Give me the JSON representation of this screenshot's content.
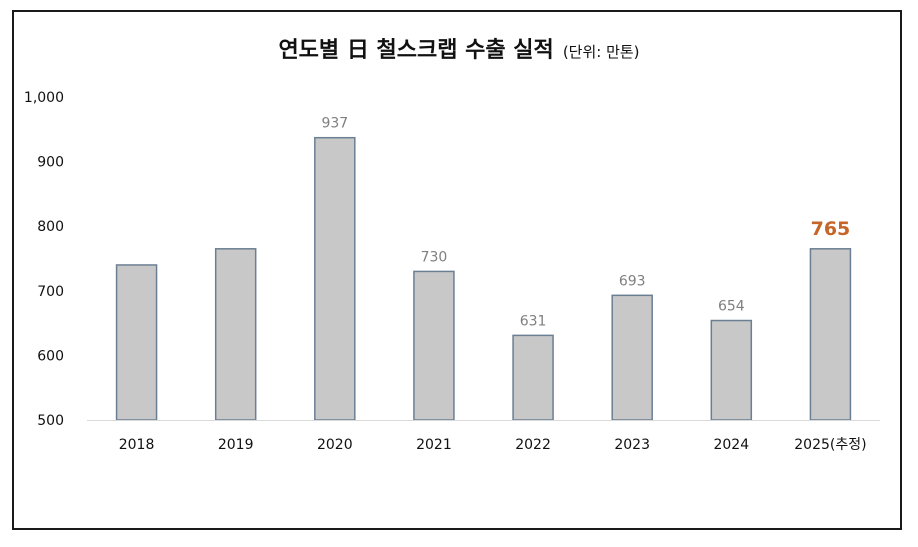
{
  "chart_data": {
    "type": "bar",
    "title": "연도별 日 철스크랩 수출 실적",
    "unit_note": "(단위: 만톤)",
    "categories": [
      "2018",
      "2019",
      "2020",
      "2021",
      "2022",
      "2023",
      "2024",
      "2025(추정)"
    ],
    "values": [
      740,
      765,
      937,
      730,
      631,
      693,
      654,
      765
    ],
    "data_labels": [
      "",
      "",
      "937",
      "730",
      "631",
      "693",
      "654",
      "765"
    ],
    "highlight_index": 7,
    "ylim": [
      500,
      1000
    ],
    "yticks": [
      "500",
      "600",
      "700",
      "800",
      "900",
      "1,000"
    ],
    "xlabel": "",
    "ylabel": "",
    "grid": false,
    "colors": {
      "bar_fill": "#c8c8c8",
      "bar_stroke": "#6b7f93",
      "axis_line": "#d9d9d9",
      "data_label": "#7f7f7f",
      "highlight_label": "#c5652a"
    }
  }
}
